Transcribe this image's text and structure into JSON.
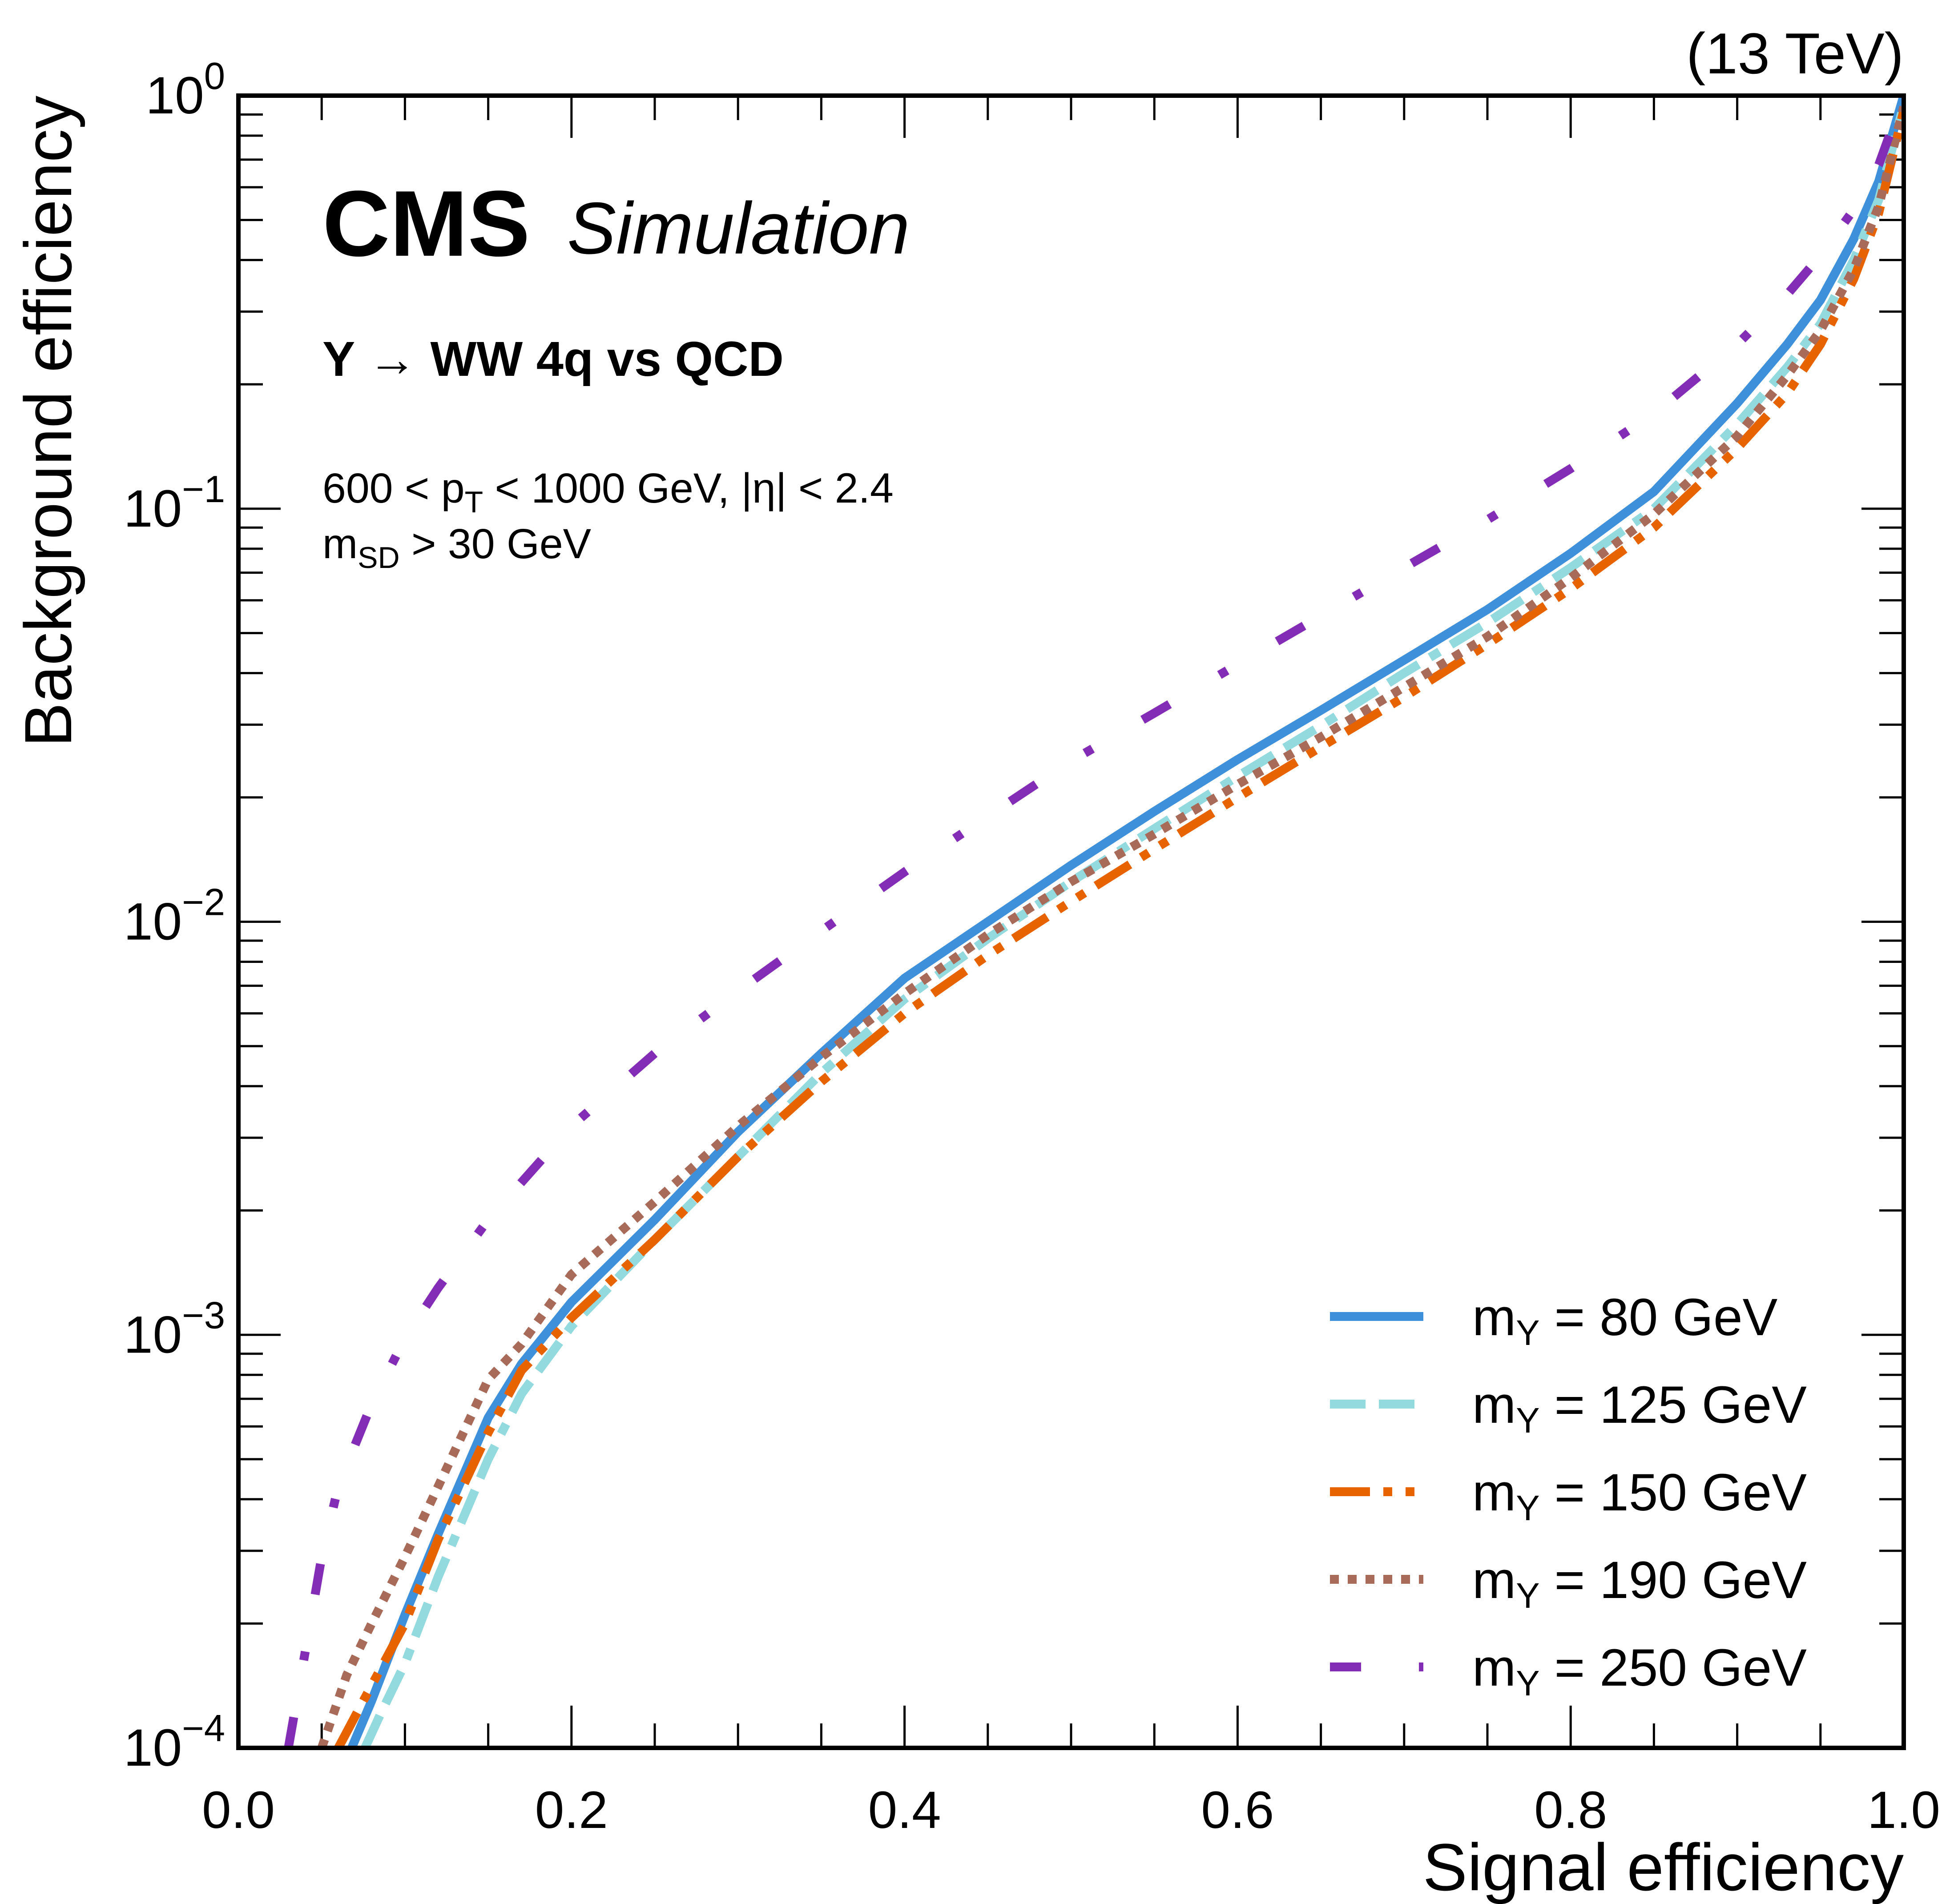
{
  "chart_data": {
    "type": "line",
    "title": "",
    "energy_label": "(13 TeV)",
    "experiment_label": "CMS",
    "experiment_sublabel": "Simulation",
    "process_label": "Y → WW 4q vs QCD",
    "cut_labels": {
      "line1": {
        "pre": "600 < p",
        "sub": "T",
        "post": " < 1000 GeV, |η| < 2.4"
      },
      "line2": {
        "pre": "m",
        "sub": "SD",
        "post": " > 30 GeV"
      }
    },
    "xlabel": "Signal efficiency",
    "ylabel": "Background efficiency",
    "xlim": [
      0.0,
      1.0
    ],
    "ylim": [
      0.0001,
      1.0
    ],
    "yscale": "log",
    "grid": false,
    "legend_position": "bottom-right",
    "x_ticks": [
      "0.0",
      "0.2",
      "0.4",
      "0.6",
      "0.8",
      "1.0"
    ],
    "y_ticks": [
      {
        "base": "10",
        "exp": "0"
      },
      {
        "base": "10",
        "exp": "−1"
      },
      {
        "base": "10",
        "exp": "−2"
      },
      {
        "base": "10",
        "exp": "−3"
      },
      {
        "base": "10",
        "exp": "−4"
      }
    ],
    "series": [
      {
        "name": "m_Y = 80 GeV",
        "label_pre": "m",
        "label_sub": "Y",
        "label_post": " = 80 GeV",
        "color": "#3f90da",
        "style": "solid",
        "x": [
          0.068,
          0.08,
          0.1,
          0.12,
          0.15,
          0.17,
          0.2,
          0.25,
          0.3,
          0.35,
          0.4,
          0.45,
          0.5,
          0.55,
          0.6,
          0.65,
          0.7,
          0.75,
          0.8,
          0.85,
          0.9,
          0.93,
          0.95,
          0.97,
          0.985,
          1.0
        ],
        "y": [
          0.0001,
          0.00013,
          0.00021,
          0.00033,
          0.00063,
          0.00085,
          0.0012,
          0.0019,
          0.0031,
          0.0048,
          0.0073,
          0.01,
          0.0137,
          0.0185,
          0.0247,
          0.0325,
          0.043,
          0.057,
          0.078,
          0.11,
          0.18,
          0.25,
          0.32,
          0.45,
          0.62,
          1.0
        ]
      },
      {
        "name": "m_Y = 125 GeV",
        "label_pre": "m",
        "label_sub": "Y",
        "label_post": " = 125 GeV",
        "color": "#92dadd",
        "style": "dashed",
        "x": [
          0.076,
          0.085,
          0.1,
          0.12,
          0.15,
          0.17,
          0.2,
          0.25,
          0.3,
          0.35,
          0.4,
          0.45,
          0.5,
          0.55,
          0.6,
          0.65,
          0.7,
          0.75,
          0.8,
          0.85,
          0.9,
          0.93,
          0.95,
          0.97,
          0.985,
          1.0
        ],
        "y": [
          0.0001,
          0.00012,
          0.00016,
          0.00026,
          0.0005,
          0.00072,
          0.00105,
          0.0017,
          0.0027,
          0.0043,
          0.0065,
          0.0091,
          0.0125,
          0.0168,
          0.0225,
          0.0298,
          0.04,
          0.053,
          0.072,
          0.1,
          0.16,
          0.22,
          0.28,
          0.4,
          0.56,
          0.95
        ]
      },
      {
        "name": "m_Y = 150 GeV",
        "label_pre": "m",
        "label_sub": "Y",
        "label_post": " = 150 GeV",
        "color": "#e76300",
        "style": "dashdotdot",
        "x": [
          0.06,
          0.075,
          0.1,
          0.12,
          0.15,
          0.17,
          0.2,
          0.25,
          0.3,
          0.35,
          0.4,
          0.45,
          0.5,
          0.55,
          0.6,
          0.65,
          0.7,
          0.75,
          0.8,
          0.85,
          0.9,
          0.93,
          0.95,
          0.97,
          0.985,
          1.0
        ],
        "y": [
          0.0001,
          0.00013,
          0.0002,
          0.00032,
          0.00058,
          0.00082,
          0.0011,
          0.0017,
          0.0027,
          0.0041,
          0.006,
          0.0083,
          0.0112,
          0.015,
          0.02,
          0.0265,
          0.035,
          0.047,
          0.064,
          0.09,
          0.14,
          0.19,
          0.25,
          0.36,
          0.52,
          0.92
        ]
      },
      {
        "name": "m_Y = 190 GeV",
        "label_pre": "m",
        "label_sub": "Y",
        "label_post": " = 190 GeV",
        "color": "#a96b59",
        "style": "dotted",
        "x": [
          0.05,
          0.065,
          0.08,
          0.1,
          0.12,
          0.15,
          0.17,
          0.2,
          0.25,
          0.3,
          0.35,
          0.4,
          0.45,
          0.5,
          0.55,
          0.6,
          0.65,
          0.7,
          0.75,
          0.8,
          0.85,
          0.9,
          0.93,
          0.95,
          0.97,
          0.985,
          1.0
        ],
        "y": [
          0.0001,
          0.00015,
          0.0002,
          0.00029,
          0.00043,
          0.00078,
          0.00095,
          0.0014,
          0.0021,
          0.0032,
          0.0047,
          0.0067,
          0.0093,
          0.0125,
          0.0163,
          0.0215,
          0.028,
          0.037,
          0.049,
          0.068,
          0.097,
          0.15,
          0.21,
          0.27,
          0.38,
          0.54,
          0.94
        ]
      },
      {
        "name": "m_Y = 250 GeV",
        "label_pre": "m",
        "label_sub": "Y",
        "label_post": " = 250 GeV",
        "color": "#832db6",
        "style": "dashdotsparse",
        "x": [
          0.03,
          0.04,
          0.05,
          0.06,
          0.08,
          0.1,
          0.12,
          0.15,
          0.2,
          0.25,
          0.3,
          0.35,
          0.4,
          0.45,
          0.5,
          0.55,
          0.6,
          0.65,
          0.7,
          0.75,
          0.8,
          0.85,
          0.9,
          0.93,
          0.95,
          0.97,
          0.985,
          1.0
        ],
        "y": [
          0.0001,
          0.00017,
          0.00029,
          0.00043,
          0.00068,
          0.00098,
          0.0013,
          0.0019,
          0.0032,
          0.0048,
          0.0068,
          0.0095,
          0.0132,
          0.018,
          0.0245,
          0.032,
          0.042,
          0.055,
          0.072,
          0.094,
          0.125,
          0.17,
          0.25,
          0.33,
          0.41,
          0.53,
          0.68,
          1.0
        ]
      }
    ]
  }
}
